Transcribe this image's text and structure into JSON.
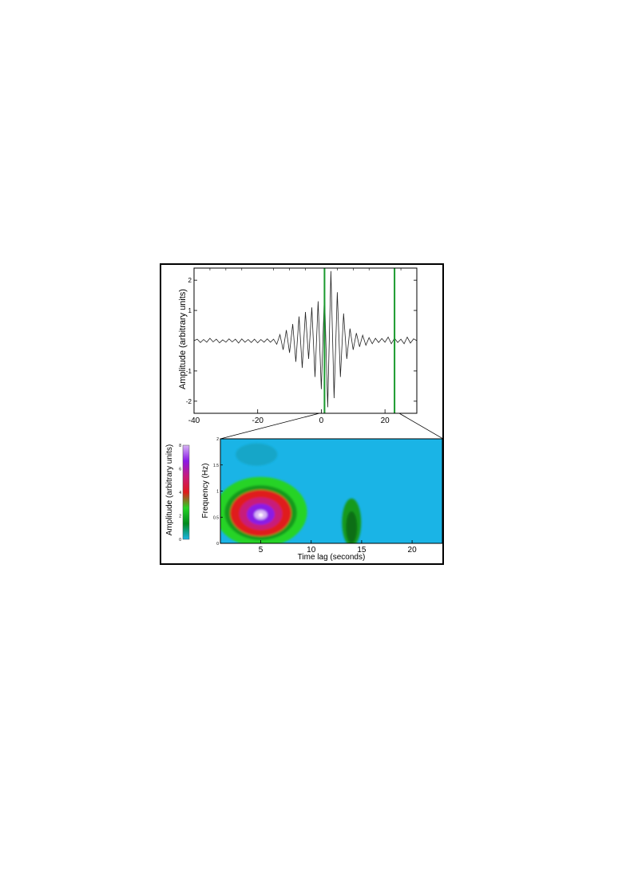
{
  "chart_data": [
    {
      "type": "line",
      "ylabel": "Amplitude (arbitrary units)",
      "xlim": [
        -40,
        30
      ],
      "ylim": [
        -2.4,
        2.4
      ],
      "xticks": [
        -40,
        -20,
        0,
        20
      ],
      "yticks": [
        -2,
        -1,
        1,
        2
      ],
      "grid": false,
      "markers": [
        1,
        23
      ],
      "series": [
        {
          "x": [
            -40,
            -39,
            -38,
            -37,
            -36,
            -35,
            -34,
            -33,
            -32,
            -31,
            -30,
            -29,
            -28,
            -27,
            -26,
            -25,
            -24,
            -23,
            -22,
            -21,
            -20,
            -19,
            -18,
            -17,
            -16,
            -15,
            -14,
            -13,
            -12,
            -11,
            -10,
            -9,
            -8,
            -7,
            -6,
            -5,
            -4,
            -3,
            -2,
            -1,
            0,
            1,
            2,
            3,
            4,
            5,
            6,
            7,
            8,
            9,
            10,
            11,
            12,
            13,
            14,
            15,
            16,
            17,
            18,
            19,
            20,
            21,
            22,
            23,
            24,
            25,
            26,
            27,
            28,
            29,
            30
          ],
          "y": [
            0,
            0.05,
            -0.06,
            0.04,
            -0.05,
            0.08,
            -0.04,
            0.05,
            -0.07,
            0.03,
            -0.05,
            0.06,
            -0.04,
            0.05,
            -0.08,
            0.06,
            -0.05,
            0.04,
            -0.06,
            0.05,
            -0.07,
            0.04,
            -0.05,
            0.06,
            -0.05,
            0.05,
            -0.12,
            0.2,
            -0.3,
            0.35,
            -0.4,
            0.55,
            -0.7,
            0.8,
            -0.9,
            0.95,
            -0.6,
            1.1,
            -1.2,
            1.3,
            -1.6,
            1.6,
            -2.2,
            2.3,
            -1.9,
            1.6,
            -1.2,
            0.9,
            -0.6,
            0.4,
            -0.3,
            0.25,
            -0.2,
            0.18,
            -0.15,
            0.1,
            -0.1,
            0.08,
            -0.06,
            0.07,
            -0.05,
            0.12,
            -0.1,
            0.08,
            -0.06,
            0.05,
            -0.1,
            0.12,
            -0.08,
            0.06,
            0
          ]
        }
      ]
    },
    {
      "type": "heatmap",
      "xlabel": "Time lag (seconds)",
      "ylabel": "Frequency (Hz)",
      "xlim": [
        1,
        23
      ],
      "ylim": [
        0,
        2
      ],
      "xticks": [
        5,
        10,
        15,
        20
      ],
      "yticks": [
        0,
        0.5,
        1,
        1.5,
        2
      ],
      "grid": false,
      "peaks": [
        {
          "x": 5,
          "y": 0.6,
          "amplitude": 8
        },
        {
          "x": 14,
          "y": 0.4,
          "amplitude": 2
        },
        {
          "x": 3,
          "y": 1.7,
          "amplitude": 1
        }
      ],
      "colorbar": {
        "label": "Amplitude (arbitrary units)",
        "ticks": [
          0,
          2,
          4,
          6,
          8
        ],
        "colors": [
          "#1ab4e6",
          "#008a1e",
          "#26d326",
          "#e01a1a",
          "#c81a7a",
          "#8a1ae6",
          "#d7b3f5"
        ]
      }
    }
  ]
}
